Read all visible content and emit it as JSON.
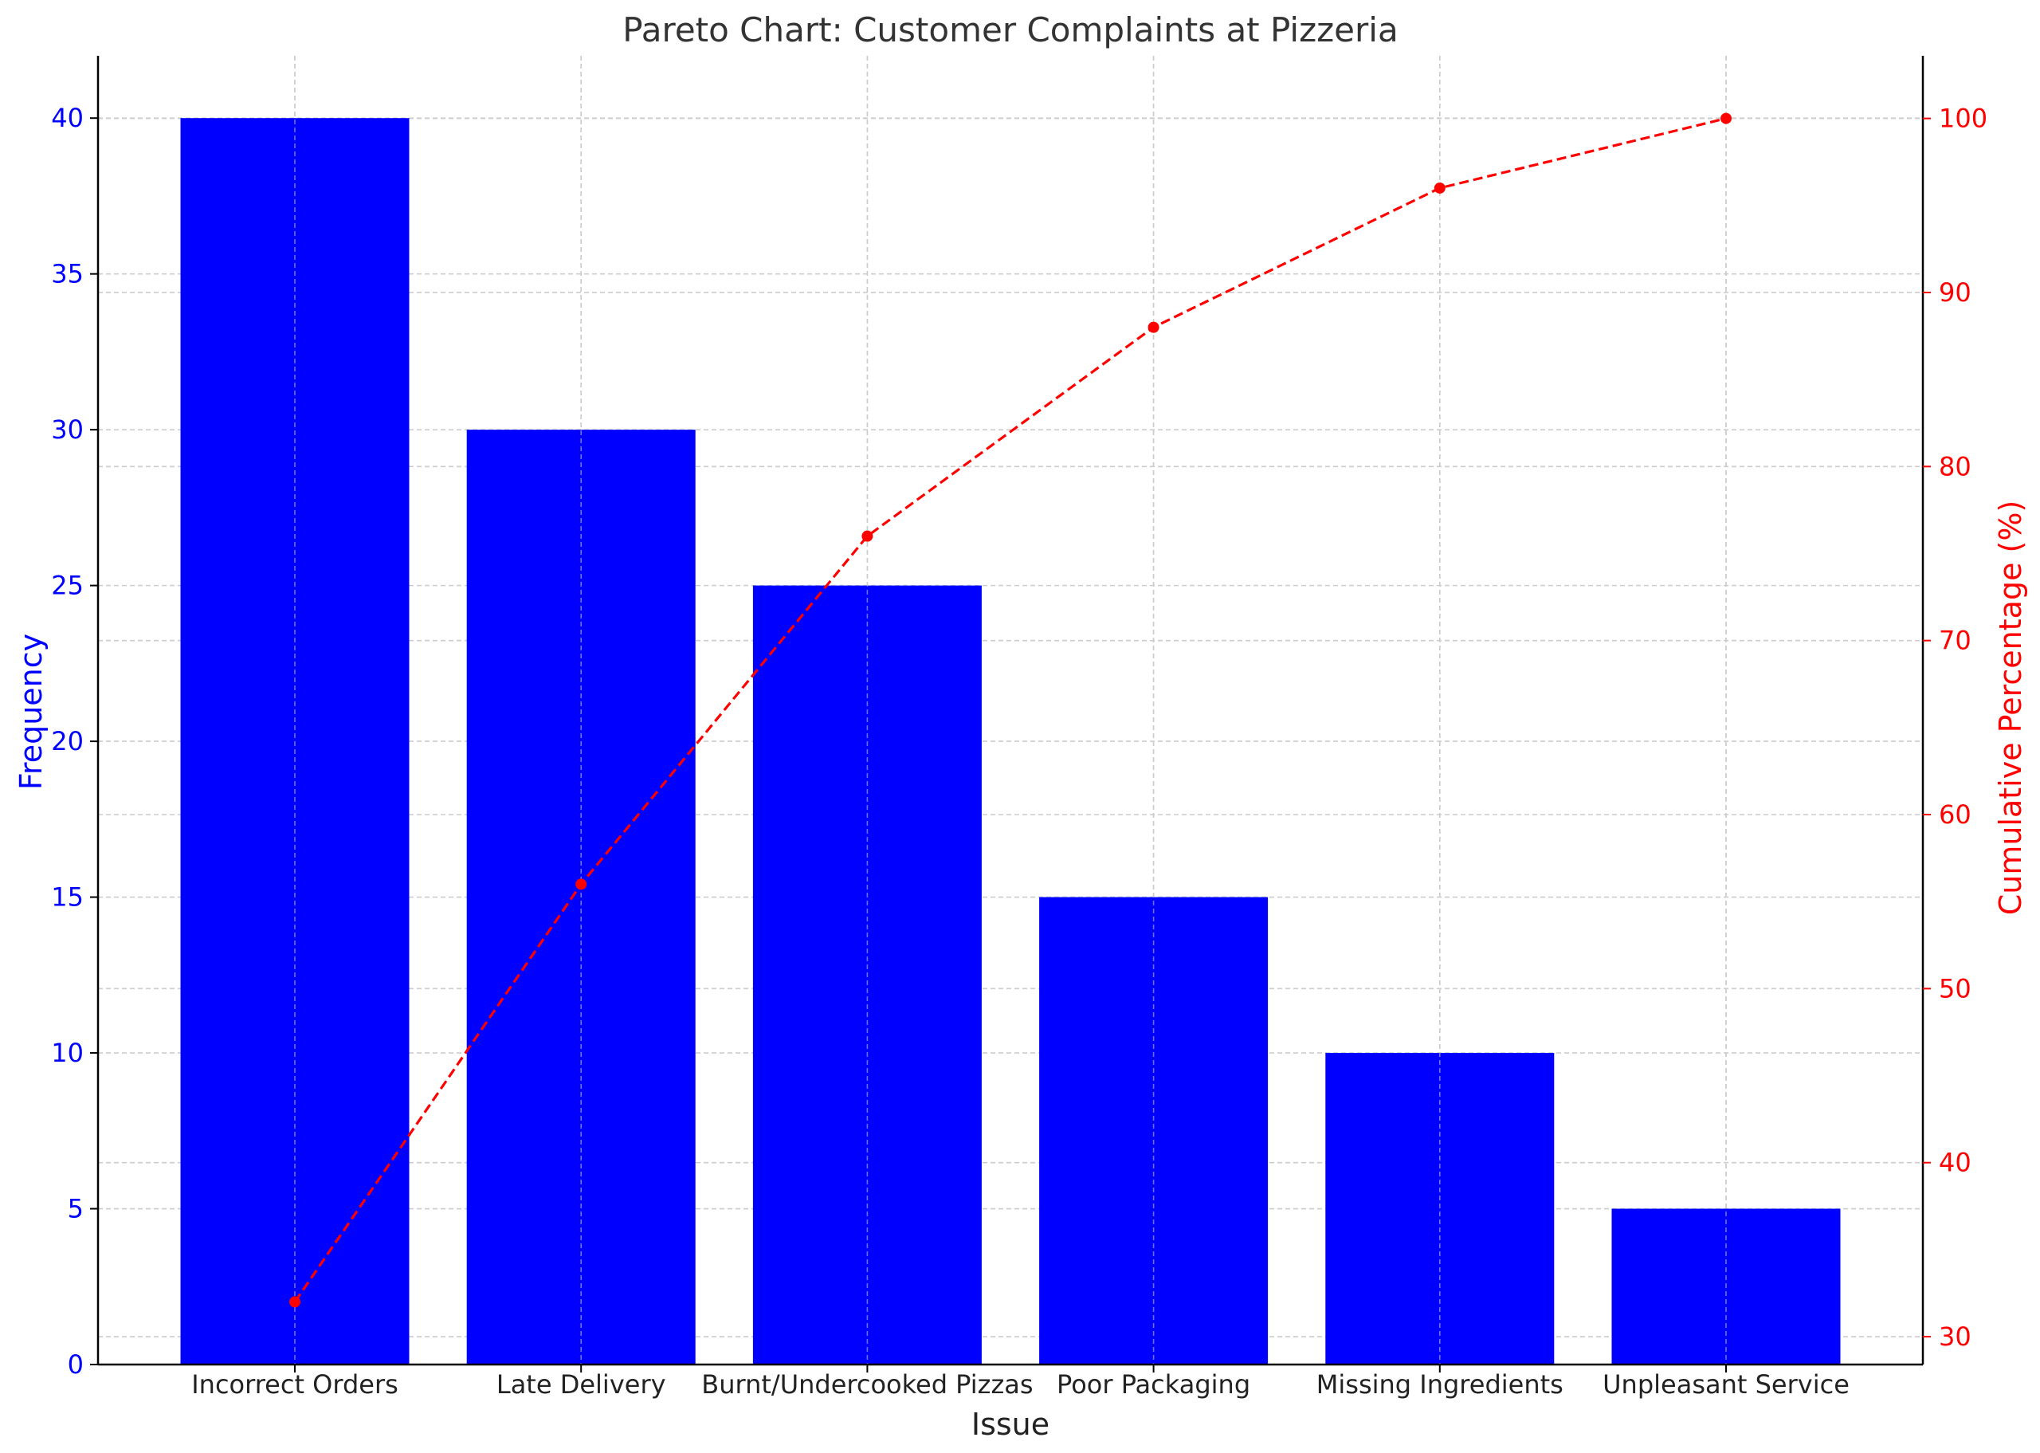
{
  "chart_data": {
    "type": "bar",
    "title": "Pareto Chart: Customer Complaints at Pizzeria",
    "xlabel": "Issue",
    "ylabel": "Frequency",
    "y2label": "Cumulative Percentage (%)",
    "categories": [
      "Incorrect Orders",
      "Late Delivery",
      "Burnt/Undercooked Pizzas",
      "Poor Packaging",
      "Missing Ingredients",
      "Unpleasant Service"
    ],
    "series": [
      {
        "name": "Frequency",
        "type": "bar",
        "axis": "left",
        "values": [
          40,
          30,
          25,
          15,
          10,
          5
        ]
      },
      {
        "name": "Cumulative Percentage (%)",
        "type": "line",
        "axis": "right",
        "values": [
          32,
          56,
          76,
          88,
          96,
          100
        ]
      }
    ],
    "ylim": [
      0,
      42
    ],
    "y2lim": [
      28.4,
      103.6
    ],
    "yticks": [
      "0",
      "5",
      "10",
      "15",
      "20",
      "25",
      "30",
      "35",
      "40"
    ],
    "y2ticks": [
      "30",
      "40",
      "50",
      "60",
      "70",
      "80",
      "90",
      "100"
    ],
    "grid": true,
    "colors": {
      "bars": "#0000ff",
      "line": "#ff0000",
      "left_axis_text": "#0000ff",
      "right_axis_text": "#ff0000"
    }
  }
}
